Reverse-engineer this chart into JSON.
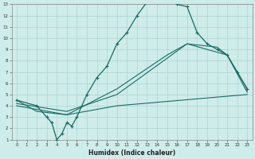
{
  "xlabel": "Humidex (Indice chaleur)",
  "bg_color": "#ceecea",
  "grid_color": "#aed4d0",
  "line_color": "#1a6b64",
  "xlim": [
    -0.5,
    23.5
  ],
  "ylim": [
    1,
    13
  ],
  "xticks": [
    0,
    1,
    2,
    3,
    4,
    5,
    6,
    7,
    8,
    9,
    10,
    11,
    12,
    13,
    14,
    15,
    16,
    17,
    18,
    19,
    20,
    21,
    22,
    23
  ],
  "yticks": [
    1,
    2,
    3,
    4,
    5,
    6,
    7,
    8,
    9,
    10,
    11,
    12,
    13
  ],
  "line1_x": [
    0,
    2,
    3,
    3.5,
    4,
    4.5,
    5,
    5.5,
    6,
    7,
    8,
    9,
    10,
    11,
    12,
    13,
    14,
    15,
    15.5,
    16,
    17,
    18,
    19,
    20,
    21,
    22,
    23
  ],
  "line1_y": [
    4.5,
    4.0,
    3.0,
    2.5,
    1.0,
    1.5,
    2.5,
    2.2,
    3.0,
    5.0,
    6.5,
    7.5,
    9.5,
    10.5,
    12.0,
    13.2,
    13.2,
    13.3,
    13.3,
    13.0,
    12.8,
    10.5,
    9.5,
    9.0,
    8.5,
    7.0,
    5.5
  ],
  "line2_x": [
    0,
    2,
    5,
    10,
    15,
    17,
    20,
    21,
    23
  ],
  "line2_y": [
    4.5,
    3.5,
    3.2,
    5.5,
    8.5,
    9.5,
    9.2,
    8.5,
    5.5
  ],
  "line3_x": [
    0,
    5,
    10,
    17,
    21,
    23
  ],
  "line3_y": [
    4.2,
    3.5,
    5.0,
    9.5,
    8.5,
    5.2
  ],
  "line4_x": [
    0,
    5,
    10,
    23
  ],
  "line4_y": [
    4.0,
    3.2,
    4.0,
    5.0
  ]
}
